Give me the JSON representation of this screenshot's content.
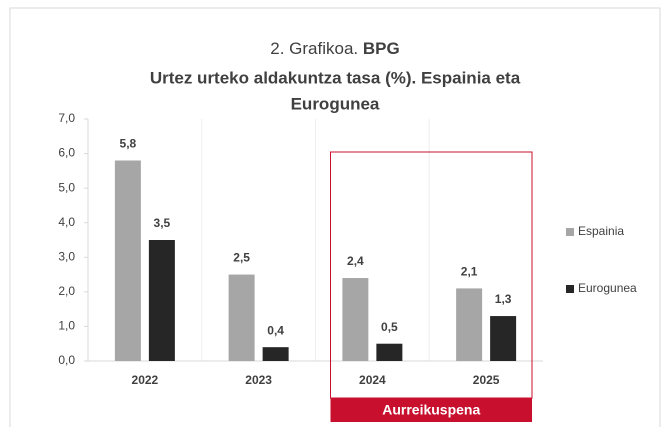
{
  "chart_data": {
    "type": "bar",
    "title": [
      "2. Grafikoa.",
      "BPG"
    ],
    "subtitle": [
      "Urtez urteko aldakuntza tasa (%). Espainia eta",
      "Eurogunea"
    ],
    "categories": [
      "2022",
      "2023",
      "2024",
      "2025"
    ],
    "series": [
      {
        "name": "Espainia",
        "color": "#a6a6a6",
        "values": [
          5.8,
          2.5,
          2.4,
          2.1
        ],
        "value_labels": [
          "5,8",
          "2,5",
          "2,4",
          "2,1"
        ]
      },
      {
        "name": "Eurogunea",
        "color": "#262626",
        "values": [
          3.5,
          0.4,
          0.5,
          1.3
        ],
        "value_labels": [
          "3,5",
          "0,4",
          "0,5",
          "1,3"
        ]
      }
    ],
    "ylim": [
      0,
      7
    ],
    "yticks": [
      {
        "value": 0,
        "label": "0,0"
      },
      {
        "value": 1,
        "label": "1,0"
      },
      {
        "value": 2,
        "label": "2,0"
      },
      {
        "value": 3,
        "label": "3,0"
      },
      {
        "value": 4,
        "label": "4,0"
      },
      {
        "value": 5,
        "label": "5,0"
      },
      {
        "value": 6,
        "label": "6,0"
      },
      {
        "value": 7,
        "label": "7,0"
      }
    ],
    "legend": "right",
    "annotation": {
      "text": "Aurreikuspena",
      "categories": [
        "2024",
        "2025"
      ],
      "color": "#c8102e"
    }
  }
}
